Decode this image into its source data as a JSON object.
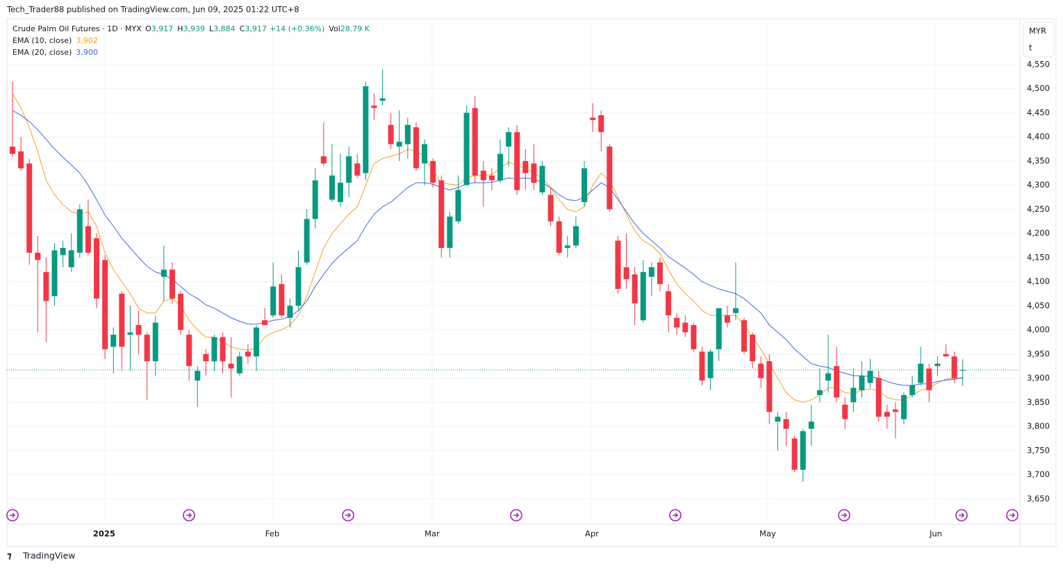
{
  "header": {
    "byline": "Tech_Trader88 published on TradingView.com, Jun 09, 2025 01:22 UTC+8"
  },
  "legend": {
    "symbol": "Crude Palm Oil Futures · 1D · MYX",
    "open_key": "O",
    "open": "3,917",
    "high_key": "H",
    "high": "3,939",
    "low_key": "L",
    "low": "3,884",
    "close_key": "C",
    "close": "3,917",
    "change": "+14 (+0.36%)",
    "volume_key": "Vol",
    "volume": "28.79 K"
  },
  "axis_currency": "MYR",
  "axis_unit": "t",
  "footer": "TradingView",
  "chart_data": {
    "type": "candlestick",
    "up_color": "#089981",
    "down_color": "#f23645",
    "grid": true,
    "open": [
      4380,
      4370,
      4345,
      4160,
      4120,
      4070,
      4155,
      4130,
      4160,
      4215,
      4190,
      4145,
      3965,
      4075,
      3990,
      4010,
      3990,
      3935,
      4110,
      4125,
      4075,
      3990,
      3895,
      3950,
      3935,
      3985,
      3930,
      3910,
      3955,
      3945,
      4020,
      4030,
      4095,
      4025,
      4050,
      4140,
      4230,
      4360,
      4270,
      4265,
      4305,
      4345,
      4325,
      4465,
      4475,
      4425,
      4380,
      4385,
      4420,
      4345,
      4350,
      4310,
      4170,
      4225,
      4300,
      4460,
      4330,
      4320,
      4310,
      4380,
      4410,
      4350,
      4345,
      4285,
      4280,
      4225,
      4170,
      4175,
      4265,
      4440,
      4445,
      4380,
      4185,
      4130,
      4115,
      4020,
      4110,
      4140,
      4080,
      4025,
      4015,
      4010,
      3955,
      3900,
      3960,
      4030,
      4035,
      4020,
      3990,
      3930,
      3935,
      3810,
      3815,
      3775,
      3710,
      3795,
      3865,
      3895,
      3925,
      3845,
      3850,
      3875,
      3890,
      3900,
      3830,
      3835,
      3815,
      3865,
      3890,
      3920,
      3925,
      3950,
      3945,
      3917
    ],
    "high": [
      4515,
      4400,
      4355,
      4195,
      4150,
      4180,
      4185,
      4200,
      4260,
      4270,
      4200,
      4155,
      4005,
      4080,
      4050,
      4040,
      3995,
      4030,
      4175,
      4140,
      4080,
      4000,
      3925,
      3960,
      3990,
      3995,
      3985,
      3955,
      3970,
      4010,
      4045,
      4140,
      4115,
      4065,
      4165,
      4250,
      4335,
      4430,
      4385,
      4365,
      4380,
      4365,
      4515,
      4490,
      4540,
      4450,
      4455,
      4440,
      4430,
      4395,
      4355,
      4320,
      4245,
      4320,
      4465,
      4485,
      4350,
      4335,
      4395,
      4420,
      4425,
      4375,
      4385,
      4350,
      4295,
      4235,
      4195,
      4235,
      4350,
      4470,
      4455,
      4385,
      4195,
      4200,
      4130,
      4145,
      4140,
      4150,
      4095,
      4035,
      4030,
      4015,
      3965,
      3960,
      4045,
      4050,
      4140,
      4025,
      3995,
      3945,
      3950,
      3830,
      3830,
      3780,
      3795,
      3845,
      3920,
      3990,
      3965,
      3860,
      3920,
      3935,
      3940,
      3915,
      3845,
      3850,
      3870,
      3905,
      3965,
      3930,
      3945,
      3970,
      3955,
      3939
    ],
    "low": [
      4358,
      4330,
      4135,
      3995,
      3975,
      4050,
      4130,
      4120,
      4150,
      4155,
      4045,
      3940,
      3910,
      3915,
      3915,
      3950,
      3855,
      3905,
      4060,
      4055,
      3990,
      3895,
      3840,
      3905,
      3915,
      3910,
      3860,
      3905,
      3930,
      3915,
      4010,
      4025,
      4025,
      4005,
      4040,
      4135,
      4210,
      4340,
      4265,
      4255,
      4275,
      4315,
      4310,
      4435,
      4465,
      4375,
      4350,
      4355,
      4330,
      4300,
      4295,
      4150,
      4150,
      4220,
      4300,
      4305,
      4255,
      4290,
      4305,
      4340,
      4280,
      4290,
      4290,
      4280,
      4215,
      4155,
      4150,
      4170,
      4255,
      4410,
      4370,
      4245,
      4075,
      4085,
      4010,
      4015,
      4070,
      4080,
      3995,
      3990,
      3985,
      3955,
      3885,
      3875,
      3935,
      4005,
      4020,
      3950,
      3920,
      3880,
      3805,
      3750,
      3760,
      3705,
      3685,
      3760,
      3850,
      3870,
      3850,
      3795,
      3830,
      3860,
      3880,
      3810,
      3795,
      3775,
      3805,
      3860,
      3885,
      3850,
      3905,
      3945,
      3890,
      3884
    ],
    "close": [
      4365,
      4335,
      4160,
      4145,
      4060,
      4165,
      4170,
      4165,
      4250,
      4160,
      4065,
      3960,
      3990,
      3965,
      3995,
      3990,
      3935,
      4015,
      4125,
      4065,
      4000,
      3925,
      3915,
      3935,
      3985,
      3935,
      3920,
      3945,
      3945,
      4005,
      4010,
      4090,
      4030,
      4050,
      4130,
      4230,
      4310,
      4345,
      4320,
      4305,
      4360,
      4320,
      4505,
      4460,
      4480,
      4385,
      4390,
      4425,
      4335,
      4385,
      4305,
      4170,
      4235,
      4290,
      4450,
      4320,
      4310,
      4310,
      4365,
      4410,
      4290,
      4325,
      4305,
      4340,
      4225,
      4160,
      4175,
      4215,
      4335,
      4435,
      4410,
      4250,
      4085,
      4105,
      4055,
      4120,
      4130,
      4095,
      4030,
      4005,
      3995,
      3960,
      3895,
      3955,
      4045,
      4015,
      4045,
      3955,
      3935,
      3900,
      3830,
      3820,
      3795,
      3710,
      3790,
      3810,
      3875,
      3910,
      3860,
      3815,
      3880,
      3905,
      3915,
      3820,
      3820,
      3830,
      3865,
      3885,
      3930,
      3875,
      3930,
      3945,
      3900,
      3917
    ],
    "series": [
      {
        "name": "EMA (10, close)",
        "color": "#f5a31a",
        "value_label": "3,902",
        "values": [
          4490,
          4460,
          4420,
          4370,
          4310,
          4280,
          4260,
          4245,
          4240,
          4245,
          4215,
          4160,
          4125,
          4100,
          4075,
          4045,
          4035,
          4035,
          4060,
          4065,
          4050,
          4020,
          4000,
          3985,
          3985,
          3975,
          3965,
          3960,
          3958,
          3962,
          3985,
          3995,
          4000,
          4010,
          4030,
          4070,
          4120,
          4170,
          4200,
          4220,
          4240,
          4255,
          4300,
          4345,
          4355,
          4360,
          4365,
          4375,
          4370,
          4360,
          4330,
          4305,
          4302,
          4300,
          4315,
          4320,
          4320,
          4322,
          4335,
          4348,
          4340,
          4335,
          4325,
          4315,
          4295,
          4270,
          4250,
          4245,
          4255,
          4300,
          4325,
          4310,
          4275,
          4240,
          4205,
          4185,
          4175,
          4158,
          4125,
          4095,
          4075,
          4060,
          4040,
          4030,
          4030,
          4030,
          4030,
          4010,
          3985,
          3960,
          3930,
          3900,
          3870,
          3855,
          3850,
          3855,
          3865,
          3880,
          3880,
          3870,
          3868,
          3875,
          3878,
          3873,
          3860,
          3855,
          3855,
          3865,
          3875,
          3880,
          3890,
          3898,
          3900,
          3902
        ]
      },
      {
        "name": "EMA (20, close)",
        "color": "#3d63f0",
        "value_label": "3,900",
        "values": [
          4455,
          4445,
          4432,
          4415,
          4395,
          4375,
          4358,
          4342,
          4325,
          4300,
          4270,
          4238,
          4215,
          4190,
          4170,
          4150,
          4132,
          4120,
          4115,
          4105,
          4090,
          4075,
          4065,
          4052,
          4045,
          4035,
          4025,
          4018,
          4012,
          4012,
          4015,
          4020,
          4022,
          4028,
          4040,
          4060,
          4090,
          4115,
          4138,
          4155,
          4170,
          4185,
          4215,
          4240,
          4255,
          4265,
          4280,
          4295,
          4305,
          4305,
          4302,
          4295,
          4290,
          4295,
          4303,
          4305,
          4305,
          4306,
          4310,
          4315,
          4313,
          4315,
          4313,
          4305,
          4295,
          4280,
          4270,
          4268,
          4275,
          4290,
          4305,
          4295,
          4270,
          4245,
          4220,
          4200,
          4185,
          4170,
          4152,
          4140,
          4128,
          4115,
          4100,
          4092,
          4085,
          4080,
          4075,
          4065,
          4050,
          4035,
          4010,
          3995,
          3980,
          3960,
          3945,
          3930,
          3925,
          3922,
          3915,
          3910,
          3905,
          3905,
          3903,
          3900,
          3893,
          3888,
          3885,
          3885,
          3888,
          3888,
          3893,
          3896,
          3898,
          3900
        ]
      }
    ],
    "xlim": [
      -0.66,
      119.8
    ],
    "xticks": [
      {
        "value": 10.9,
        "label": "2025"
      },
      {
        "value": 30.9,
        "label": "Feb"
      },
      {
        "value": 49.9,
        "label": "Mar"
      },
      {
        "value": 68.9,
        "label": "Apr"
      },
      {
        "value": 89.8,
        "label": "May"
      },
      {
        "value": 109.8,
        "label": "Jun"
      }
    ],
    "ylim": [
      3600,
      4645
    ],
    "yticks": [
      {
        "value": 3650,
        "label": "3,650"
      },
      {
        "value": 3700,
        "label": "3,700"
      },
      {
        "value": 3750,
        "label": "3,750"
      },
      {
        "value": 3800,
        "label": "3,800"
      },
      {
        "value": 3850,
        "label": "3,850"
      },
      {
        "value": 3900,
        "label": "3,900"
      },
      {
        "value": 3950,
        "label": "3,950"
      },
      {
        "value": 4000,
        "label": "4,000"
      },
      {
        "value": 4050,
        "label": "4,050"
      },
      {
        "value": 4100,
        "label": "4,100"
      },
      {
        "value": 4150,
        "label": "4,150"
      },
      {
        "value": 4200,
        "label": "4,200"
      },
      {
        "value": 4250,
        "label": "4,250"
      },
      {
        "value": 4300,
        "label": "4,300"
      },
      {
        "value": 4350,
        "label": "4,350"
      },
      {
        "value": 4400,
        "label": "4,400"
      },
      {
        "value": 4450,
        "label": "4,450"
      },
      {
        "value": 4500,
        "label": "4,500"
      },
      {
        "value": 4550,
        "label": "4,550"
      }
    ]
  }
}
